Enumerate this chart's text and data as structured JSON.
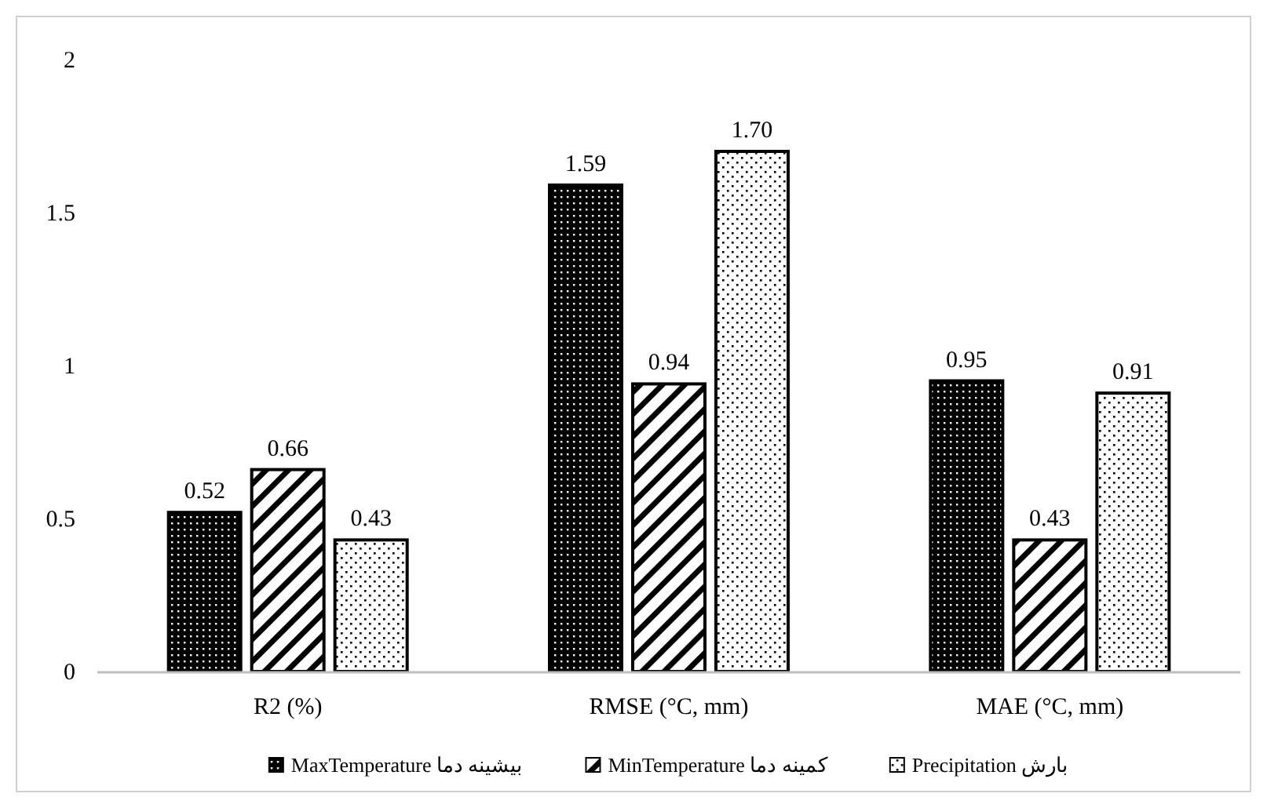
{
  "chart_data": {
    "type": "bar",
    "categories": [
      "R2 (%)",
      "RMSE (°C, mm)",
      "MAE (°C, mm)"
    ],
    "series": [
      {
        "name": "MaxTemperature بیشینه دما",
        "color": "#000000",
        "values": [
          0.52,
          1.59,
          0.95
        ]
      },
      {
        "name": "MinTemperature کمینه دما",
        "color": "#000000",
        "values": [
          0.66,
          0.94,
          0.43
        ]
      },
      {
        "name": "Precipitation بارش",
        "color": "#000000",
        "values": [
          0.43,
          1.7,
          0.91
        ]
      }
    ],
    "value_labels": [
      [
        "0.52",
        "1.59",
        "0.95"
      ],
      [
        "0.66",
        "0.94",
        "0.43"
      ],
      [
        "0.43",
        "1.70",
        "0.91"
      ]
    ],
    "ylim": [
      0,
      2
    ],
    "yticks": [
      0,
      0.5,
      1,
      1.5,
      2
    ],
    "grid": false,
    "legend": "bottom"
  }
}
